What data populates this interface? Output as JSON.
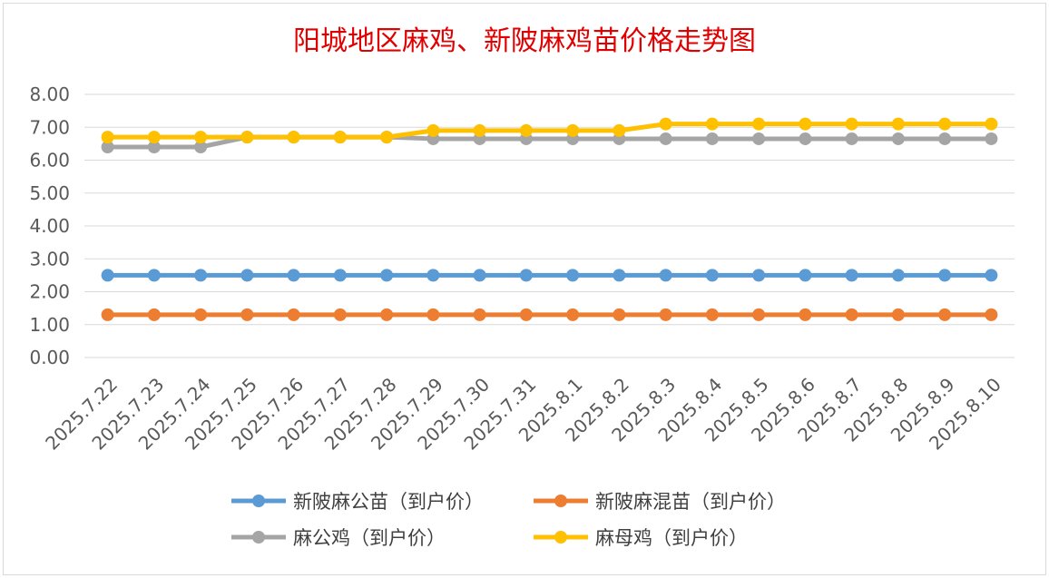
{
  "chart_data": {
    "type": "line",
    "title": "阳城地区麻鸡、新陂麻鸡苗价格走势图",
    "xlabel": "",
    "ylabel": "",
    "ylim": [
      0,
      8
    ],
    "yticks": [
      "0.00",
      "1.00",
      "2.00",
      "3.00",
      "4.00",
      "5.00",
      "6.00",
      "7.00",
      "8.00"
    ],
    "grid": true,
    "legend_position": "bottom",
    "categories": [
      "2025.7.22",
      "2025.7.23",
      "2025.7.24",
      "2025.7.25",
      "2025.7.26",
      "2025.7.27",
      "2025.7.28",
      "2025.7.29",
      "2025.7.30",
      "2025.7.31",
      "2025.8.1",
      "2025.8.2",
      "2025.8.3",
      "2025.8.4",
      "2025.8.5",
      "2025.8.6",
      "2025.8.7",
      "2025.8.8",
      "2025.8.9",
      "2025.8.10"
    ],
    "series": [
      {
        "name": "新陂麻公苗（到户价）",
        "color": "#5b9bd5",
        "values": [
          2.5,
          2.5,
          2.5,
          2.5,
          2.5,
          2.5,
          2.5,
          2.5,
          2.5,
          2.5,
          2.5,
          2.5,
          2.5,
          2.5,
          2.5,
          2.5,
          2.5,
          2.5,
          2.5,
          2.5
        ]
      },
      {
        "name": "新陂麻混苗（到户价）",
        "color": "#ed7d31",
        "values": [
          1.3,
          1.3,
          1.3,
          1.3,
          1.3,
          1.3,
          1.3,
          1.3,
          1.3,
          1.3,
          1.3,
          1.3,
          1.3,
          1.3,
          1.3,
          1.3,
          1.3,
          1.3,
          1.3,
          1.3
        ]
      },
      {
        "name": "麻公鸡（到户价）",
        "color": "#a5a5a5",
        "values": [
          6.4,
          6.4,
          6.4,
          6.7,
          6.7,
          6.7,
          6.7,
          6.65,
          6.65,
          6.65,
          6.65,
          6.65,
          6.65,
          6.65,
          6.65,
          6.65,
          6.65,
          6.65,
          6.65,
          6.65
        ]
      },
      {
        "name": "麻母鸡（到户价）",
        "color": "#ffc000",
        "values": [
          6.7,
          6.7,
          6.7,
          6.7,
          6.7,
          6.7,
          6.7,
          6.9,
          6.9,
          6.9,
          6.9,
          6.9,
          7.1,
          7.1,
          7.1,
          7.1,
          7.1,
          7.1,
          7.1,
          7.1
        ]
      }
    ],
    "draw_order": [
      2,
      3,
      0,
      1
    ]
  }
}
